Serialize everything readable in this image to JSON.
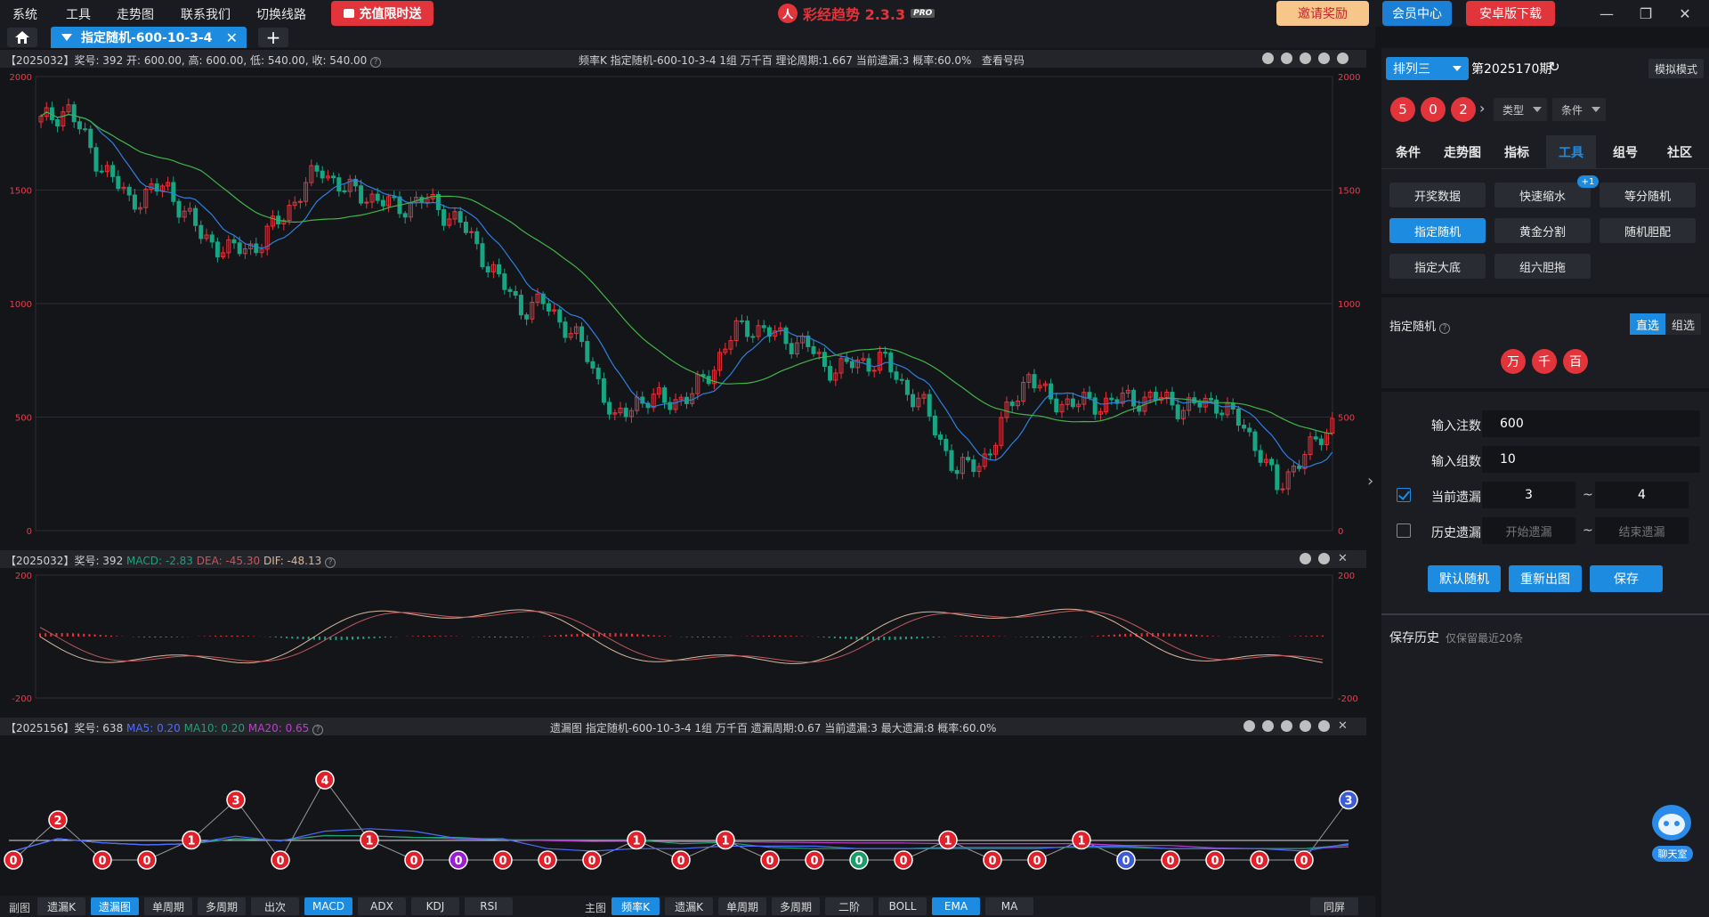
{
  "menu": [
    "系统",
    "工具",
    "走势图",
    "联系我们",
    "切换线路"
  ],
  "promo_label": "充值限时送",
  "brand": {
    "name": "彩经趋势 2.3.3",
    "pro": "PRO",
    "logo_char": "人"
  },
  "top_buttons": {
    "invite": "邀请奖励",
    "member": "会员中心",
    "android": "安卓版下载"
  },
  "window_controls": {
    "minimize": "—",
    "restore": "❐",
    "close": "✕"
  },
  "tab": {
    "label": "指定随机-600-10-3-4",
    "close": "✕",
    "add": "+"
  },
  "kline": {
    "head_left": "【2025032】奖号: 392  开: 600.00, 高: 600.00, 低: 540.00, 收: 540.00",
    "head_center": "频率K   指定随机-600-10-3-4   1组   万千百   理论周期:1.667   当前遗漏:3   概率:60.0%",
    "head_button": "查看号码",
    "y_ticks": [
      2000,
      1500,
      1000,
      500,
      0
    ]
  },
  "macd": {
    "head_prefix": "【2025032】奖号: 392 ",
    "macd_label": "MACD: -2.83",
    "dea_label": "DEA: -45.30",
    "dif_label": "DIF: -48.13",
    "y_ticks": [
      200,
      -200
    ]
  },
  "omit": {
    "head_prefix": "【2025156】奖号: 638 ",
    "ma5_label": "MA5: 0.20",
    "ma10_label": "MA10: 0.20",
    "ma20_label": "MA20: 0.65",
    "head_center": "遗漏图   指定随机-600-10-3-4   1组   万千百   遗漏周期:0.67   当前遗漏:3   最大遗漏:8   概率:60.0%",
    "values": [
      0,
      2,
      0,
      0,
      1,
      3,
      0,
      4,
      1,
      0,
      0,
      0,
      0,
      0,
      1,
      0,
      1,
      0,
      0,
      0,
      0,
      1,
      0,
      0,
      1,
      0,
      0,
      0,
      0,
      0,
      3
    ],
    "special_colors": {
      "10": "#9b1fd1",
      "19": "#1a9c6a",
      "25": "#3d5ad8",
      "30": "#3d5ad8"
    }
  },
  "colors": {
    "up": "#e8323c",
    "down": "#18a583",
    "ma_blue": "#2f7fe0",
    "ma_green": "#43b34a",
    "accent": "#1d8ce0"
  },
  "bottom": {
    "sub_label": "副图",
    "sub_buttons": [
      "遗漏K",
      "遗漏图",
      "单周期",
      "多周期",
      "出次",
      "MACD",
      "ADX",
      "KDJ",
      "RSI"
    ],
    "sub_active": [
      "遗漏图",
      "MACD"
    ],
    "main_label": "主图",
    "main_buttons": [
      "频率K",
      "遗漏K",
      "单周期",
      "多周期",
      "二阶",
      "BOLL",
      "EMA",
      "MA"
    ],
    "main_active": [
      "频率K",
      "EMA"
    ],
    "sync": "同屏"
  },
  "right": {
    "game": "排列三",
    "period": "第2025170期",
    "sim_mode": "模拟模式",
    "balls": [
      "5",
      "0",
      "2"
    ],
    "drop_type": "类型",
    "drop_cond": "条件",
    "tabs": [
      "条件",
      "走势图",
      "指标",
      "工具",
      "组号",
      "社区"
    ],
    "active_tab": "工具",
    "tools": [
      "开奖数据",
      "快速缩水",
      "等分随机",
      "指定随机",
      "黄金分割",
      "随机胆配",
      "指定大底",
      "组六胆拖"
    ],
    "active_tool": "指定随机",
    "badge": "+1",
    "specified_label": "指定随机",
    "seg_direct": "直选",
    "seg_group": "组选",
    "positions": [
      "万",
      "千",
      "百"
    ],
    "input_count_label": "输入注数",
    "input_count": "600",
    "input_groups_label": "输入组数",
    "input_groups": "10",
    "cur_omit_label": "当前遗漏",
    "cur_omit_from": "3",
    "cur_omit_to": "4",
    "hist_omit_label": "历史遗漏",
    "hist_start_ph": "开始遗漏",
    "hist_end_ph": "结束遗漏",
    "tilde": "~",
    "btn_default": "默认随机",
    "btn_redraw": "重新出图",
    "btn_save": "保存",
    "history_title": "保存历史",
    "history_note": "仅保留最近20条",
    "chat_label": "聊天室"
  }
}
